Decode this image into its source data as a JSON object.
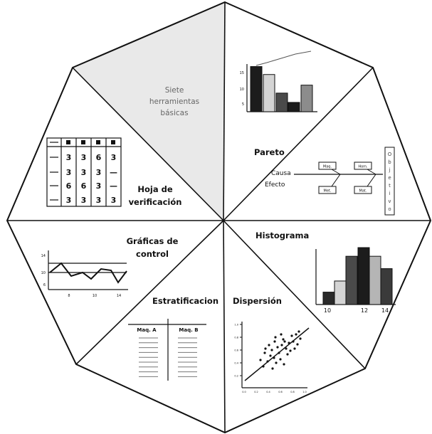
{
  "center": {
    "lines": [
      "Siete",
      "herramientas",
      "básicas"
    ]
  },
  "pareto": {
    "title": "Pareto",
    "y_ticks": [
      "15",
      "10",
      "5"
    ],
    "bars": [
      17,
      14,
      7,
      3.5,
      10
    ],
    "bar_colors": [
      "#1c1c1c",
      "#d4d4d4",
      "#4a4a4a",
      "#1c1c1c",
      "#8c8c8c"
    ]
  },
  "causa": {
    "causa_label": "Causa",
    "efecto_label": "Efecto",
    "top_boxes": [
      "Maq.",
      "Hom."
    ],
    "bottom_boxes": [
      "Met.",
      "Mat."
    ],
    "objective_letters": [
      "O",
      "b",
      "j",
      "e",
      "t",
      "i",
      "v",
      "o"
    ]
  },
  "histograma": {
    "title": "Histograma",
    "x_ticks": [
      "10",
      "12",
      "14"
    ],
    "bars": [
      1.0,
      1.9,
      3.9,
      4.6,
      3.9,
      2.9
    ],
    "bar_colors": [
      "#2a2a2a",
      "#d4d4d4",
      "#4a4a4a",
      "#1c1c1c",
      "#b5b5b5",
      "#3a3a3a"
    ]
  },
  "dispersion": {
    "title": "Dispersión",
    "y_ticks": [
      "1.0",
      "0.8",
      "0.6",
      "0.4",
      "0.2"
    ],
    "x_ticks": [
      "0.0",
      "0.2",
      "0.4",
      "0.6",
      "0.8",
      "1.0"
    ]
  },
  "estratificacion": {
    "title": "Estratificacion",
    "headers": [
      "Maq. A",
      "Maq. B"
    ]
  },
  "graficas": {
    "title_lines": [
      "Gráficas de",
      "control"
    ],
    "y_ticks": [
      "14",
      "10",
      "6"
    ],
    "x_ticks": [
      "8",
      "10",
      "14"
    ]
  },
  "hoja": {
    "title_lines": [
      "Hoja de",
      "verificación"
    ],
    "rows": [
      [
        "3",
        "3",
        "6",
        "3"
      ],
      [
        "3",
        "3",
        "3",
        "—"
      ],
      [
        "6",
        "6",
        "3",
        "—"
      ],
      [
        "3",
        "3",
        "3",
        "3"
      ]
    ]
  }
}
